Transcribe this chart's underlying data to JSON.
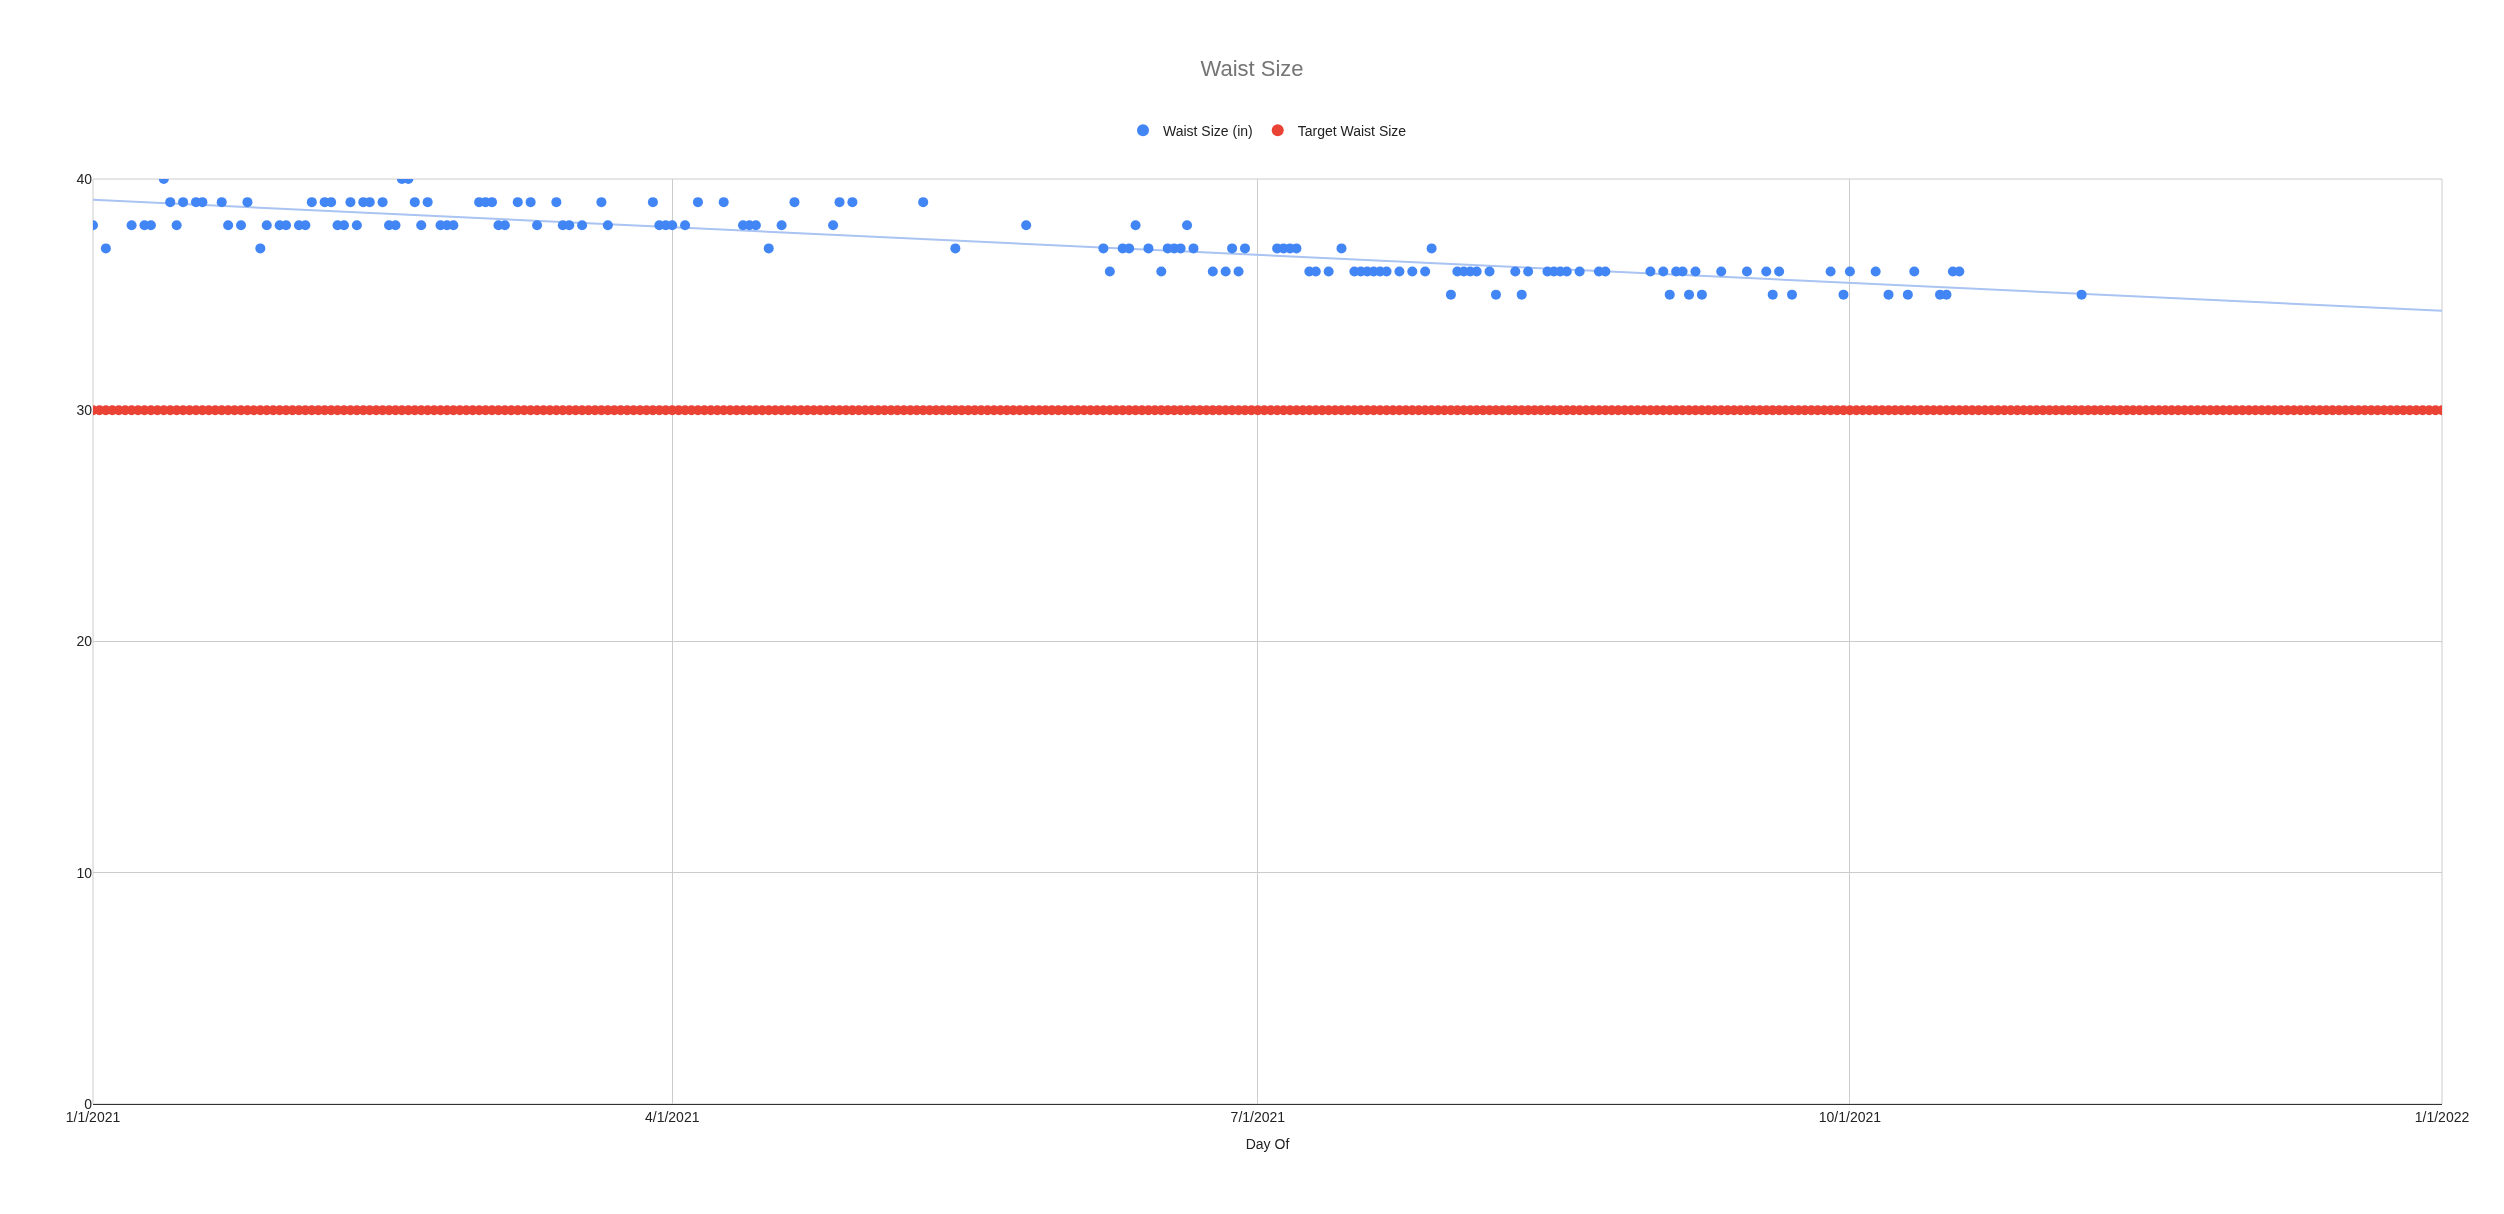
{
  "chart_data": {
    "type": "scatter",
    "title": "Waist Size",
    "xlabel": "Day Of",
    "xlim": [
      "2021-01-01",
      "2022-01-01"
    ],
    "xticks": [
      {
        "value": "2021-01-01",
        "label": "1/1/2021"
      },
      {
        "value": "2021-04-01",
        "label": "4/1/2021"
      },
      {
        "value": "2021-07-01",
        "label": "7/1/2021"
      },
      {
        "value": "2021-10-01",
        "label": "10/1/2021"
      },
      {
        "value": "2022-01-01",
        "label": "1/1/2022"
      }
    ],
    "ylim": [
      0,
      40
    ],
    "yticks": [
      0,
      10,
      20,
      30,
      40
    ],
    "grid": true,
    "legend": "top",
    "marker": "circle",
    "series": [
      {
        "name": "Waist Size (in)",
        "color": "#4285f4",
        "x": [
          "2021-01-01",
          "2021-01-03",
          "2021-01-07",
          "2021-01-09",
          "2021-01-10",
          "2021-01-12",
          "2021-01-13",
          "2021-01-14",
          "2021-01-15",
          "2021-01-17",
          "2021-01-18",
          "2021-01-21",
          "2021-01-22",
          "2021-01-24",
          "2021-01-25",
          "2021-01-27",
          "2021-01-28",
          "2021-01-30",
          "2021-01-31",
          "2021-02-02",
          "2021-02-03",
          "2021-02-04",
          "2021-02-06",
          "2021-02-07",
          "2021-02-08",
          "2021-02-09",
          "2021-02-10",
          "2021-02-11",
          "2021-02-12",
          "2021-02-13",
          "2021-02-15",
          "2021-02-16",
          "2021-02-17",
          "2021-02-18",
          "2021-02-19",
          "2021-02-20",
          "2021-02-21",
          "2021-02-22",
          "2021-02-24",
          "2021-02-25",
          "2021-02-26",
          "2021-03-02",
          "2021-03-03",
          "2021-03-04",
          "2021-03-05",
          "2021-03-06",
          "2021-03-08",
          "2021-03-10",
          "2021-03-11",
          "2021-03-14",
          "2021-03-15",
          "2021-03-16",
          "2021-03-18",
          "2021-03-21",
          "2021-03-22",
          "2021-03-29",
          "2021-03-30",
          "2021-03-31",
          "2021-04-01",
          "2021-04-03",
          "2021-04-05",
          "2021-04-09",
          "2021-04-12",
          "2021-04-13",
          "2021-04-14",
          "2021-04-16",
          "2021-04-18",
          "2021-04-20",
          "2021-04-26",
          "2021-04-27",
          "2021-04-29",
          "2021-05-10",
          "2021-05-15",
          "2021-05-26",
          "2021-06-07",
          "2021-06-08",
          "2021-06-10",
          "2021-06-11",
          "2021-06-12",
          "2021-06-14",
          "2021-06-16",
          "2021-06-17",
          "2021-06-18",
          "2021-06-19",
          "2021-06-20",
          "2021-06-21",
          "2021-06-24",
          "2021-06-26",
          "2021-06-27",
          "2021-06-28",
          "2021-06-29",
          "2021-07-04",
          "2021-07-05",
          "2021-07-06",
          "2021-07-07",
          "2021-07-09",
          "2021-07-10",
          "2021-07-12",
          "2021-07-14",
          "2021-07-16",
          "2021-07-17",
          "2021-07-18",
          "2021-07-19",
          "2021-07-20",
          "2021-07-21",
          "2021-07-23",
          "2021-07-25",
          "2021-07-27",
          "2021-07-28",
          "2021-07-31",
          "2021-08-01",
          "2021-08-02",
          "2021-08-03",
          "2021-08-04",
          "2021-08-06",
          "2021-08-07",
          "2021-08-10",
          "2021-08-11",
          "2021-08-12",
          "2021-08-15",
          "2021-08-16",
          "2021-08-17",
          "2021-08-18",
          "2021-08-20",
          "2021-08-23",
          "2021-08-24",
          "2021-08-31",
          "2021-09-02",
          "2021-09-03",
          "2021-09-04",
          "2021-09-05",
          "2021-09-06",
          "2021-09-07",
          "2021-09-08",
          "2021-09-11",
          "2021-09-15",
          "2021-09-18",
          "2021-09-19",
          "2021-09-20",
          "2021-09-22",
          "2021-09-28",
          "2021-09-30",
          "2021-10-01",
          "2021-10-05",
          "2021-10-07",
          "2021-10-10",
          "2021-10-11",
          "2021-10-15",
          "2021-10-16",
          "2021-10-17",
          "2021-10-18",
          "2021-11-06"
        ],
        "values": [
          38,
          37,
          38,
          38,
          38,
          40,
          39,
          38,
          39,
          39,
          39,
          39,
          38,
          38,
          39,
          37,
          38,
          38,
          38,
          38,
          38,
          39,
          39,
          39,
          38,
          38,
          39,
          38,
          39,
          39,
          39,
          38,
          38,
          40,
          40,
          39,
          38,
          39,
          38,
          38,
          38,
          39,
          39,
          39,
          38,
          38,
          39,
          39,
          38,
          39,
          38,
          38,
          38,
          39,
          38,
          39,
          38,
          38,
          38,
          38,
          39,
          39,
          38,
          38,
          38,
          37,
          38,
          39,
          38,
          39,
          39,
          39,
          37,
          38,
          37,
          36,
          37,
          37,
          38,
          37,
          36,
          37,
          37,
          37,
          38,
          37,
          36,
          36,
          37,
          36,
          37,
          37,
          37,
          37,
          37,
          36,
          36,
          36,
          37,
          36,
          36,
          36,
          36,
          36,
          36,
          36,
          36,
          36,
          37,
          35,
          36,
          36,
          36,
          36,
          36,
          35,
          36,
          35,
          36,
          36,
          36,
          36,
          36,
          36,
          36,
          36,
          36,
          36,
          35,
          36,
          36,
          35,
          36,
          35,
          36,
          36,
          36,
          35,
          36,
          35,
          36,
          35,
          36,
          36,
          35,
          35,
          36,
          35,
          35,
          36,
          36,
          35
        ]
      },
      {
        "name": "Target Waist Size",
        "color": "#ea4335",
        "x": [
          "2021-01-01",
          "2021-01-02",
          "2021-01-03",
          "2021-01-04",
          "2021-01-05",
          "2021-01-06",
          "2021-01-07",
          "2021-01-08",
          "2021-01-09",
          "2021-01-10",
          "2021-01-11",
          "2021-01-12",
          "2021-01-13",
          "2021-01-14",
          "2021-01-15",
          "2021-01-16",
          "2021-01-17",
          "2021-01-18",
          "2021-01-19",
          "2021-01-20",
          "2021-01-21",
          "2021-01-22",
          "2021-01-23",
          "2021-01-24",
          "2021-01-25",
          "2021-01-26",
          "2021-01-27",
          "2021-01-28",
          "2021-01-29",
          "2021-01-30",
          "2021-01-31",
          "2021-02-01",
          "2021-02-02",
          "2021-02-03",
          "2021-02-04",
          "2021-02-05",
          "2021-02-06",
          "2021-02-07",
          "2021-02-08",
          "2021-02-09",
          "2021-02-10",
          "2021-02-11",
          "2021-02-12",
          "2021-02-13",
          "2021-02-14",
          "2021-02-15",
          "2021-02-16",
          "2021-02-17",
          "2021-02-18",
          "2021-02-19",
          "2021-02-20",
          "2021-02-21",
          "2021-02-22",
          "2021-02-23",
          "2021-02-24",
          "2021-02-25",
          "2021-02-26",
          "2021-02-27",
          "2021-02-28",
          "2021-03-01",
          "2021-03-02",
          "2021-03-03",
          "2021-03-04",
          "2021-03-05",
          "2021-03-06",
          "2021-03-07",
          "2021-03-08",
          "2021-03-09",
          "2021-03-10",
          "2021-03-11",
          "2021-03-12",
          "2021-03-13",
          "2021-03-14",
          "2021-03-15",
          "2021-03-16",
          "2021-03-17",
          "2021-03-18",
          "2021-03-19",
          "2021-03-20",
          "2021-03-21",
          "2021-03-22",
          "2021-03-23",
          "2021-03-24",
          "2021-03-25",
          "2021-03-26",
          "2021-03-27",
          "2021-03-28",
          "2021-03-29",
          "2021-03-30",
          "2021-03-31",
          "2021-04-01",
          "2021-04-02",
          "2021-04-03",
          "2021-04-04",
          "2021-04-05",
          "2021-04-06",
          "2021-04-07",
          "2021-04-08",
          "2021-04-09",
          "2021-04-10",
          "2021-04-11",
          "2021-04-12",
          "2021-04-13",
          "2021-04-14",
          "2021-04-15",
          "2021-04-16",
          "2021-04-17",
          "2021-04-18",
          "2021-04-19",
          "2021-04-20",
          "2021-04-21",
          "2021-04-22",
          "2021-04-23",
          "2021-04-24",
          "2021-04-25",
          "2021-04-26",
          "2021-04-27",
          "2021-04-28",
          "2021-04-29",
          "2021-04-30",
          "2021-05-01",
          "2021-05-02",
          "2021-05-03",
          "2021-05-04",
          "2021-05-05",
          "2021-05-06",
          "2021-05-07",
          "2021-05-08",
          "2021-05-09",
          "2021-05-10",
          "2021-05-11",
          "2021-05-12",
          "2021-05-13",
          "2021-05-14",
          "2021-05-15",
          "2021-05-16",
          "2021-05-17",
          "2021-05-18",
          "2021-05-19",
          "2021-05-20",
          "2021-05-21",
          "2021-05-22",
          "2021-05-23",
          "2021-05-24",
          "2021-05-25",
          "2021-05-26",
          "2021-05-27",
          "2021-05-28",
          "2021-05-29",
          "2021-05-30",
          "2021-05-31",
          "2021-06-01",
          "2021-06-02",
          "2021-06-03",
          "2021-06-04",
          "2021-06-05",
          "2021-06-06",
          "2021-06-07",
          "2021-06-08",
          "2021-06-09",
          "2021-06-10",
          "2021-06-11",
          "2021-06-12",
          "2021-06-13",
          "2021-06-14",
          "2021-06-15",
          "2021-06-16",
          "2021-06-17",
          "2021-06-18",
          "2021-06-19",
          "2021-06-20",
          "2021-06-21",
          "2021-06-22",
          "2021-06-23",
          "2021-06-24",
          "2021-06-25",
          "2021-06-26",
          "2021-06-27",
          "2021-06-28",
          "2021-06-29",
          "2021-06-30",
          "2021-07-01",
          "2021-07-02",
          "2021-07-03",
          "2021-07-04",
          "2021-07-05",
          "2021-07-06",
          "2021-07-07",
          "2021-07-08",
          "2021-07-09",
          "2021-07-10",
          "2021-07-11",
          "2021-07-12",
          "2021-07-13",
          "2021-07-14",
          "2021-07-15",
          "2021-07-16",
          "2021-07-17",
          "2021-07-18",
          "2021-07-19",
          "2021-07-20",
          "2021-07-21",
          "2021-07-22",
          "2021-07-23",
          "2021-07-24",
          "2021-07-25",
          "2021-07-26",
          "2021-07-27",
          "2021-07-28",
          "2021-07-29",
          "2021-07-30",
          "2021-07-31",
          "2021-08-01",
          "2021-08-02",
          "2021-08-03",
          "2021-08-04",
          "2021-08-05",
          "2021-08-06",
          "2021-08-07",
          "2021-08-08",
          "2021-08-09",
          "2021-08-10",
          "2021-08-11",
          "2021-08-12",
          "2021-08-13",
          "2021-08-14",
          "2021-08-15",
          "2021-08-16",
          "2021-08-17",
          "2021-08-18",
          "2021-08-19",
          "2021-08-20",
          "2021-08-21",
          "2021-08-22",
          "2021-08-23",
          "2021-08-24",
          "2021-08-25",
          "2021-08-26",
          "2021-08-27",
          "2021-08-28",
          "2021-08-29",
          "2021-08-30",
          "2021-08-31",
          "2021-09-01",
          "2021-09-02",
          "2021-09-03",
          "2021-09-04",
          "2021-09-05",
          "2021-09-06",
          "2021-09-07",
          "2021-09-08",
          "2021-09-09",
          "2021-09-10",
          "2021-09-11",
          "2021-09-12",
          "2021-09-13",
          "2021-09-14",
          "2021-09-15",
          "2021-09-16",
          "2021-09-17",
          "2021-09-18",
          "2021-09-19",
          "2021-09-20",
          "2021-09-21",
          "2021-09-22",
          "2021-09-23",
          "2021-09-24",
          "2021-09-25",
          "2021-09-26",
          "2021-09-27",
          "2021-09-28",
          "2021-09-29",
          "2021-09-30",
          "2021-10-01",
          "2021-10-02",
          "2021-10-03",
          "2021-10-04",
          "2021-10-05",
          "2021-10-06",
          "2021-10-07",
          "2021-10-08",
          "2021-10-09",
          "2021-10-10",
          "2021-10-11",
          "2021-10-12",
          "2021-10-13",
          "2021-10-14",
          "2021-10-15",
          "2021-10-16",
          "2021-10-17",
          "2021-10-18",
          "2021-10-19",
          "2021-10-20",
          "2021-10-21",
          "2021-10-22",
          "2021-10-23",
          "2021-10-24",
          "2021-10-25",
          "2021-10-26",
          "2021-10-27",
          "2021-10-28",
          "2021-10-29",
          "2021-10-30",
          "2021-10-31",
          "2021-11-01",
          "2021-11-02",
          "2021-11-03",
          "2021-11-04",
          "2021-11-05",
          "2021-11-06",
          "2021-11-07",
          "2021-11-08",
          "2021-11-09",
          "2021-11-10",
          "2021-11-11",
          "2021-11-12",
          "2021-11-13",
          "2021-11-14",
          "2021-11-15",
          "2021-11-16",
          "2021-11-17",
          "2021-11-18",
          "2021-11-19",
          "2021-11-20",
          "2021-11-21",
          "2021-11-22",
          "2021-11-23",
          "2021-11-24",
          "2021-11-25",
          "2021-11-26",
          "2021-11-27",
          "2021-11-28",
          "2021-11-29",
          "2021-11-30",
          "2021-12-01",
          "2021-12-02",
          "2021-12-03",
          "2021-12-04",
          "2021-12-05",
          "2021-12-06",
          "2021-12-07",
          "2021-12-08",
          "2021-12-09",
          "2021-12-10",
          "2021-12-11",
          "2021-12-12",
          "2021-12-13",
          "2021-12-14",
          "2021-12-15",
          "2021-12-16",
          "2021-12-17",
          "2021-12-18",
          "2021-12-19",
          "2021-12-20",
          "2021-12-21",
          "2021-12-22",
          "2021-12-23",
          "2021-12-24",
          "2021-12-25",
          "2021-12-26",
          "2021-12-27",
          "2021-12-28",
          "2021-12-29",
          "2021-12-30",
          "2021-12-31",
          "2022-01-01"
        ],
        "values": [
          30,
          30,
          30,
          30,
          30,
          30,
          30,
          30,
          30,
          30,
          30,
          30,
          30,
          30,
          30,
          30,
          30,
          30,
          30,
          30,
          30,
          30,
          30,
          30,
          30,
          30,
          30,
          30,
          30,
          30,
          30,
          30,
          30,
          30,
          30,
          30,
          30,
          30,
          30,
          30,
          30,
          30,
          30,
          30,
          30,
          30,
          30,
          30,
          30,
          30,
          30,
          30,
          30,
          30,
          30,
          30,
          30,
          30,
          30,
          30,
          30,
          30,
          30,
          30,
          30,
          30,
          30,
          30,
          30,
          30,
          30,
          30,
          30,
          30,
          30,
          30,
          30,
          30,
          30,
          30,
          30,
          30,
          30,
          30,
          30,
          30,
          30,
          30,
          30,
          30,
          30,
          30,
          30,
          30,
          30,
          30,
          30,
          30,
          30,
          30,
          30,
          30,
          30,
          30,
          30,
          30,
          30,
          30,
          30,
          30,
          30,
          30,
          30,
          30,
          30,
          30,
          30,
          30,
          30,
          30,
          30,
          30,
          30,
          30,
          30,
          30,
          30,
          30,
          30,
          30,
          30,
          30,
          30,
          30,
          30,
          30,
          30,
          30,
          30,
          30,
          30,
          30,
          30,
          30,
          30,
          30,
          30,
          30,
          30,
          30,
          30,
          30,
          30,
          30,
          30,
          30,
          30,
          30,
          30,
          30,
          30,
          30,
          30,
          30,
          30,
          30,
          30,
          30,
          30,
          30,
          30,
          30,
          30,
          30,
          30,
          30,
          30,
          30,
          30,
          30,
          30,
          30,
          30,
          30,
          30,
          30,
          30,
          30,
          30,
          30,
          30,
          30,
          30,
          30,
          30,
          30,
          30,
          30,
          30,
          30,
          30,
          30,
          30,
          30,
          30,
          30,
          30,
          30,
          30,
          30,
          30,
          30,
          30,
          30,
          30,
          30,
          30,
          30,
          30,
          30,
          30,
          30,
          30,
          30,
          30,
          30,
          30,
          30,
          30,
          30,
          30,
          30,
          30,
          30,
          30,
          30,
          30,
          30,
          30,
          30,
          30,
          30,
          30,
          30,
          30,
          30,
          30,
          30,
          30,
          30,
          30,
          30,
          30,
          30,
          30,
          30,
          30,
          30,
          30,
          30,
          30,
          30,
          30,
          30,
          30,
          30,
          30,
          30,
          30,
          30,
          30,
          30,
          30,
          30,
          30,
          30,
          30,
          30,
          30,
          30,
          30,
          30,
          30,
          30,
          30,
          30,
          30,
          30,
          30,
          30,
          30,
          30,
          30,
          30,
          30,
          30,
          30,
          30,
          30,
          30,
          30,
          30,
          30,
          30,
          30,
          30,
          30,
          30,
          30,
          30,
          30,
          30,
          30,
          30,
          30,
          30,
          30,
          30,
          30,
          30,
          30,
          30,
          30,
          30,
          30,
          30,
          30,
          30,
          30,
          30,
          30,
          30,
          30,
          30,
          30,
          30,
          30,
          30,
          30,
          30,
          30,
          30,
          30,
          30,
          30,
          30,
          30,
          30,
          30,
          30,
          30,
          30,
          30,
          30,
          30,
          30,
          30,
          30,
          30,
          30,
          30,
          30,
          30,
          30,
          30,
          30
        ]
      },
      {
        "type": "line",
        "marker": "none",
        "color": "#a9c3f2",
        "x": [
          "2021-01-01",
          "2022-01-01"
        ],
        "values": [
          39.1,
          34.3
        ]
      }
    ]
  }
}
